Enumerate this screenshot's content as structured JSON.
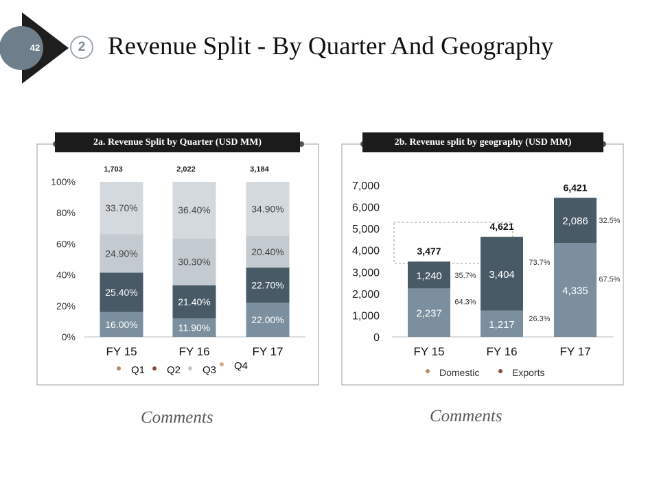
{
  "header": {
    "slide_number": "42",
    "section_number": "2",
    "title": "Revenue Split - By Quarter And Geography"
  },
  "colors": {
    "dark_slate": "#485a66",
    "steel": "#7b8f9e",
    "light_gray": "#c4cbd0",
    "lighter_gray": "#d3d9dd",
    "legend_dot_1": "#b28a67",
    "legend_dot_2": "#8a4b3a",
    "legend_dot_3": "#c9c9c9",
    "legend_dot_4": "#d9a58f"
  },
  "comments": [
    "Comments",
    "Comments"
  ],
  "chart_data": [
    {
      "type": "bar",
      "stacked": "percent",
      "title": "2a. Revenue Split by Quarter (USD MM)",
      "categories": [
        "FY 15",
        "FY 16",
        "FY 17"
      ],
      "totals": [
        "1,703",
        "2,022",
        "3,184"
      ],
      "yticks": [
        "0%",
        "20%",
        "40%",
        "60%",
        "80%",
        "100%"
      ],
      "ylim": [
        0,
        100
      ],
      "series": [
        {
          "name": "Q1",
          "values": [
            16.0,
            11.9,
            22.0
          ],
          "labels": [
            "16.00%",
            "11.90%",
            "22.00%"
          ]
        },
        {
          "name": "Q2",
          "values": [
            25.4,
            21.4,
            22.7
          ],
          "labels": [
            "25.40%",
            "21.40%",
            "22.70%"
          ]
        },
        {
          "name": "Q3",
          "values": [
            24.9,
            30.3,
            20.4
          ],
          "labels": [
            "24.90%",
            "30.30%",
            "20.40%"
          ]
        },
        {
          "name": "Q4",
          "values": [
            33.7,
            36.4,
            34.9
          ],
          "labels": [
            "33.70%",
            "36.40%",
            "34.90%"
          ]
        }
      ],
      "legend": [
        "Q1",
        "Q2",
        "Q3",
        "Q4"
      ]
    },
    {
      "type": "bar",
      "stacked": "value",
      "title": "2b. Revenue split by geography (USD MM)",
      "categories": [
        "FY 15",
        "FY 16",
        "FY 17"
      ],
      "totals": [
        "3,477",
        "4,621",
        "6,421"
      ],
      "yticks": [
        "0",
        "1,000",
        "2,000",
        "3,000",
        "4,000",
        "5,000",
        "6,000",
        "7,000"
      ],
      "ylim": [
        0,
        7000
      ],
      "series": [
        {
          "name": "Domestic",
          "values": [
            2237,
            1217,
            4335
          ],
          "labels": [
            "2,237",
            "1,217",
            "4,335"
          ],
          "pct": [
            "64.3%",
            "26.3%",
            "67.5%"
          ]
        },
        {
          "name": "Exports",
          "values": [
            1240,
            3404,
            2086
          ],
          "labels": [
            "1,240",
            "3,404",
            "2,086"
          ],
          "pct": [
            "35.7%",
            "73.7%",
            "32.5%"
          ]
        }
      ],
      "legend": [
        "Domestic",
        "Exports"
      ]
    }
  ]
}
